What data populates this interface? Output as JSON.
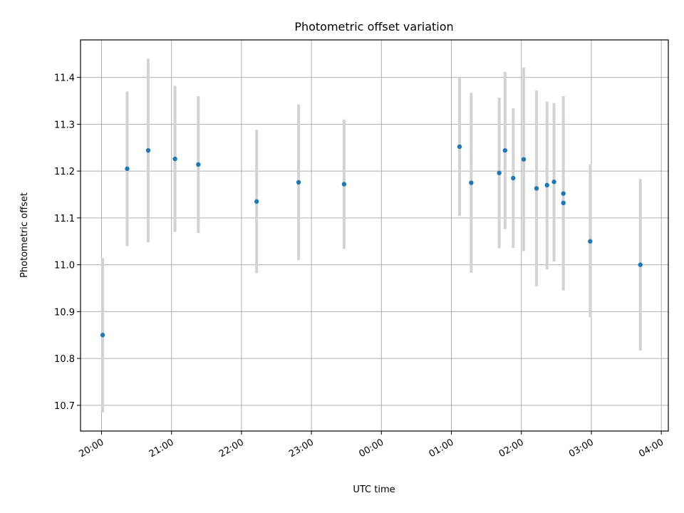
{
  "chart_data": {
    "type": "scatter",
    "title": "Photometric offset variation",
    "xlabel": "UTC time",
    "ylabel": "Photometric offset",
    "grid": true,
    "x_type": "time",
    "xlim": [
      "2000-01-01T19:42",
      "2000-01-02T04:06"
    ],
    "ylim": [
      10.645,
      11.48
    ],
    "x_ticks": [
      {
        "t": "2000-01-01T20:00",
        "label": "20:00"
      },
      {
        "t": "2000-01-01T21:00",
        "label": "21:00"
      },
      {
        "t": "2000-01-01T22:00",
        "label": "22:00"
      },
      {
        "t": "2000-01-01T23:00",
        "label": "23:00"
      },
      {
        "t": "2000-01-02T00:00",
        "label": "00:00"
      },
      {
        "t": "2000-01-02T01:00",
        "label": "01:00"
      },
      {
        "t": "2000-01-02T02:00",
        "label": "02:00"
      },
      {
        "t": "2000-01-02T03:00",
        "label": "03:00"
      },
      {
        "t": "2000-01-02T04:00",
        "label": "04:00"
      }
    ],
    "y_ticks": [
      10.7,
      10.8,
      10.9,
      11.0,
      11.1,
      11.2,
      11.3,
      11.4
    ],
    "y_tick_labels": [
      "10.7",
      "10.8",
      "10.9",
      "11.0",
      "11.1",
      "11.2",
      "11.3",
      "11.4"
    ],
    "point_color": "#1f77b4",
    "errorbar_color": "#d3d3d3",
    "series": [
      {
        "points": [
          {
            "t": "2000-01-01T20:01",
            "y": 10.85,
            "err_low": 10.685,
            "err_high": 11.015
          },
          {
            "t": "2000-01-01T20:22",
            "y": 11.205,
            "err_low": 11.04,
            "err_high": 11.37
          },
          {
            "t": "2000-01-01T20:40",
            "y": 11.244,
            "err_low": 11.048,
            "err_high": 11.44
          },
          {
            "t": "2000-01-01T21:03",
            "y": 11.226,
            "err_low": 11.07,
            "err_high": 11.382
          },
          {
            "t": "2000-01-01T21:23",
            "y": 11.214,
            "err_low": 11.068,
            "err_high": 11.36
          },
          {
            "t": "2000-01-01T22:13",
            "y": 11.135,
            "err_low": 10.982,
            "err_high": 11.288
          },
          {
            "t": "2000-01-01T22:49",
            "y": 11.176,
            "err_low": 11.01,
            "err_high": 11.342
          },
          {
            "t": "2000-01-01T23:28",
            "y": 11.172,
            "err_low": 11.034,
            "err_high": 11.31
          },
          {
            "t": "2000-01-02T01:07",
            "y": 11.252,
            "err_low": 11.104,
            "err_high": 11.4
          },
          {
            "t": "2000-01-02T01:17",
            "y": 11.175,
            "err_low": 10.983,
            "err_high": 11.367
          },
          {
            "t": "2000-01-02T01:41",
            "y": 11.196,
            "err_low": 11.035,
            "err_high": 11.357
          },
          {
            "t": "2000-01-02T01:46",
            "y": 11.244,
            "err_low": 11.076,
            "err_high": 11.412
          },
          {
            "t": "2000-01-02T01:53",
            "y": 11.185,
            "err_low": 11.036,
            "err_high": 11.334
          },
          {
            "t": "2000-01-02T02:02",
            "y": 11.225,
            "err_low": 11.029,
            "err_high": 11.421
          },
          {
            "t": "2000-01-02T02:13",
            "y": 11.163,
            "err_low": 10.954,
            "err_high": 11.372
          },
          {
            "t": "2000-01-02T02:22",
            "y": 11.17,
            "err_low": 10.99,
            "err_high": 11.348
          },
          {
            "t": "2000-01-02T02:28",
            "y": 11.177,
            "err_low": 11.007,
            "err_high": 11.345
          },
          {
            "t": "2000-01-02T02:36",
            "y": 11.152,
            "err_low": 10.945,
            "err_high": 11.36
          },
          {
            "t": "2000-01-02T02:36",
            "y": 11.132,
            "err_low": 10.95,
            "err_high": 11.313
          },
          {
            "t": "2000-01-02T02:59",
            "y": 11.05,
            "err_low": 10.888,
            "err_high": 11.214
          },
          {
            "t": "2000-01-02T03:42",
            "y": 11.0,
            "err_low": 10.817,
            "err_high": 11.183
          }
        ]
      }
    ]
  }
}
